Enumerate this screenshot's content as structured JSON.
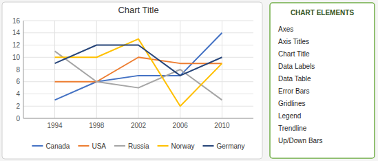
{
  "chart_data": {
    "type": "line",
    "title": "Chart Title",
    "x": [
      1994,
      1998,
      2002,
      2006,
      2010
    ],
    "xlim": [
      1991,
      2013
    ],
    "xticks": [
      1994,
      1998,
      2002,
      2006,
      2010
    ],
    "ylim": [
      0,
      16
    ],
    "yticks": [
      0,
      2,
      4,
      6,
      8,
      10,
      12,
      14,
      16
    ],
    "grid": true,
    "legend": "bottom",
    "series": [
      {
        "name": "Canada",
        "color": "#4472C4",
        "values": [
          3,
          6,
          7,
          7,
          14
        ]
      },
      {
        "name": "USA",
        "color": "#ED7D31",
        "values": [
          6,
          6,
          10,
          9,
          9
        ]
      },
      {
        "name": "Russia",
        "color": "#A5A5A5",
        "values": [
          11,
          6,
          5,
          8,
          3
        ]
      },
      {
        "name": "Norway",
        "color": "#FFC000",
        "values": [
          10,
          10,
          13,
          2,
          9
        ]
      },
      {
        "name": "Germany",
        "color": "#264478",
        "values": [
          9,
          12,
          12,
          7,
          10
        ]
      }
    ],
    "annotations": [
      "CHART ELEMENTS",
      "Axes",
      "Axis Titles",
      "Chart Title",
      "Data Labels",
      "Data Table",
      "Error Bars",
      "Gridlines",
      "Legend",
      "Trendline",
      "Up/Down Bars"
    ]
  }
}
